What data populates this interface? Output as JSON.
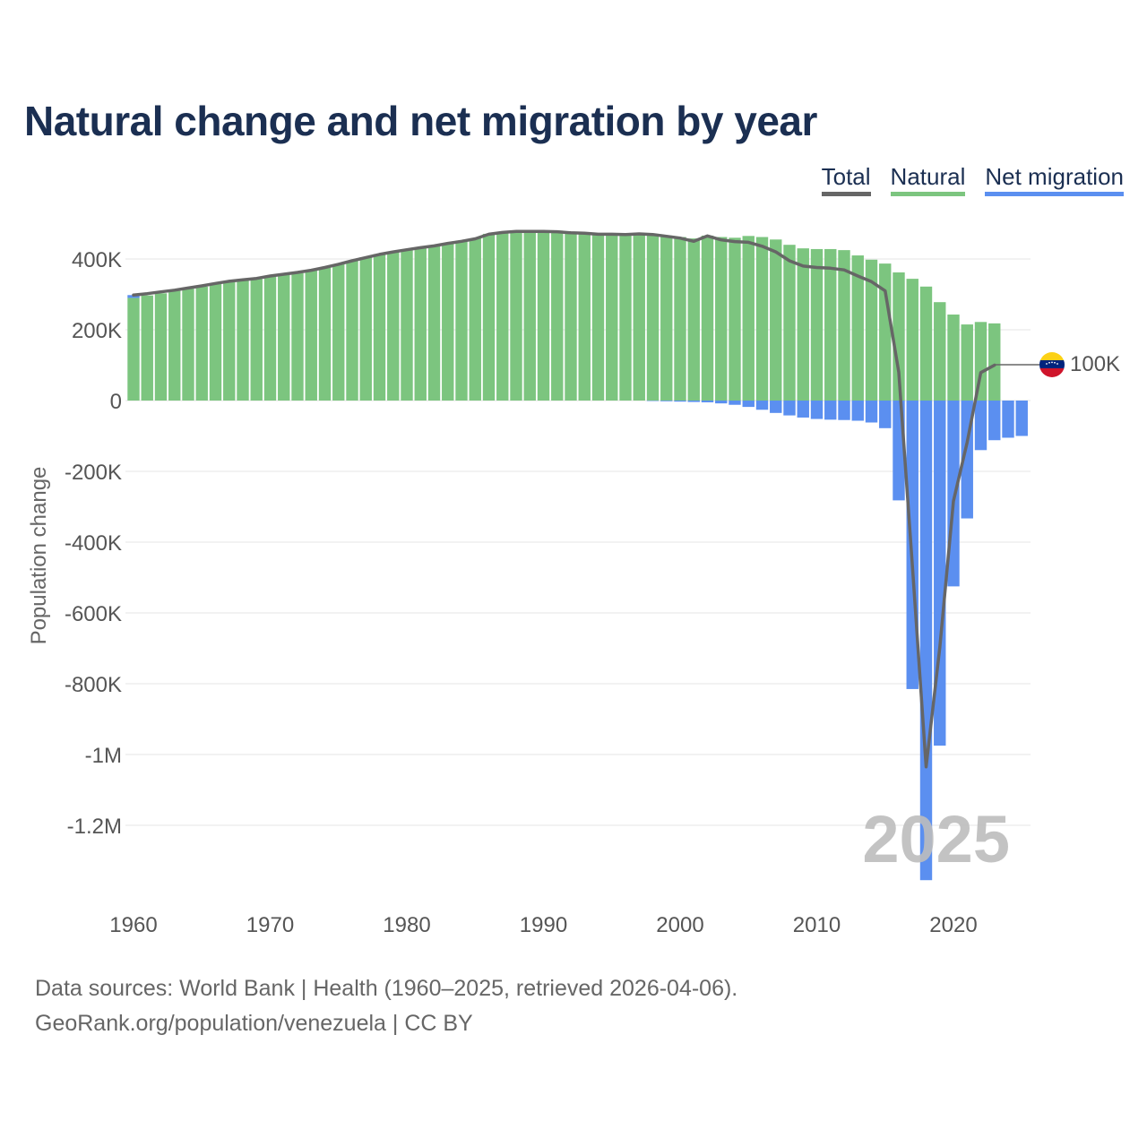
{
  "title": "Natural change and net migration by year",
  "legend": {
    "total": "Total",
    "natural": "Natural",
    "net_migration": "Net migration"
  },
  "colors": {
    "total": "#666666",
    "natural": "#7cc57f",
    "net_migration": "#5b8ff0",
    "title": "#1b2f52",
    "watermark": "#bdbdbd"
  },
  "footer": {
    "line1": "Data sources: World Bank | Health (1960–2025, retrieved 2026-04-06).",
    "line2": "GeoRank.org/population/venezuela | CC BY"
  },
  "chart_data": {
    "type": "bar",
    "title": "Natural change and net migration by year",
    "ylabel": "Population change",
    "xlabel": "",
    "ylim": [
      -1360000,
      500000
    ],
    "xlim": [
      1960,
      2025
    ],
    "yticks": [
      400000,
      200000,
      0,
      -200000,
      -400000,
      -600000,
      -800000,
      -1000000,
      -1200000
    ],
    "ytick_labels": [
      "400K",
      "200K",
      "0",
      "-200K",
      "-400K",
      "-600K",
      "-800K",
      "-1M",
      "-1.2M"
    ],
    "xticks": [
      1960,
      1970,
      1980,
      1990,
      2000,
      2010,
      2020
    ],
    "xtick_labels": [
      "1960",
      "1970",
      "1980",
      "1990",
      "2000",
      "2010",
      "2020"
    ],
    "watermark": "2025",
    "end_label": "100K",
    "end_marker": "venezuela-flag",
    "years": [
      1960,
      1961,
      1962,
      1963,
      1964,
      1965,
      1966,
      1967,
      1968,
      1969,
      1970,
      1971,
      1972,
      1973,
      1974,
      1975,
      1976,
      1977,
      1978,
      1979,
      1980,
      1981,
      1982,
      1983,
      1984,
      1985,
      1986,
      1987,
      1988,
      1989,
      1990,
      1991,
      1992,
      1993,
      1994,
      1995,
      1996,
      1997,
      1998,
      1999,
      2000,
      2001,
      2002,
      2003,
      2004,
      2005,
      2006,
      2007,
      2008,
      2009,
      2010,
      2011,
      2012,
      2013,
      2014,
      2015,
      2016,
      2017,
      2018,
      2019,
      2020,
      2021,
      2022,
      2023,
      2024,
      2025
    ],
    "series": [
      {
        "name": "Natural",
        "values": [
          290000,
          297000,
          303000,
          310000,
          316000,
          322000,
          329000,
          335000,
          340000,
          343000,
          350000,
          355000,
          360000,
          367000,
          375000,
          385000,
          395000,
          405000,
          414000,
          421000,
          427000,
          433000,
          438000,
          445000,
          451000,
          458000,
          471000,
          476000,
          480000,
          480000,
          480000,
          480000,
          477000,
          476000,
          473000,
          472000,
          471000,
          473000,
          470000,
          466000,
          462000,
          458000,
          466000,
          462000,
          460000,
          465000,
          462000,
          455000,
          440000,
          430000,
          428000,
          428000,
          425000,
          410000,
          398000,
          387000,
          362000,
          344000,
          322000,
          278000,
          243000,
          215000,
          222000,
          218000,
          null,
          null
        ]
      },
      {
        "name": "Net migration",
        "values": [
          8000,
          0,
          0,
          0,
          0,
          0,
          0,
          0,
          0,
          0,
          0,
          0,
          0,
          0,
          0,
          0,
          0,
          0,
          0,
          0,
          0,
          0,
          0,
          0,
          0,
          0,
          0,
          0,
          0,
          0,
          0,
          0,
          0,
          0,
          0,
          0,
          0,
          0,
          -1000,
          -2000,
          -3000,
          -4000,
          -5000,
          -8000,
          -12000,
          -18000,
          -26000,
          -35000,
          -42000,
          -48000,
          -52000,
          -54000,
          -55000,
          -57000,
          -62000,
          -78000,
          -282000,
          -815000,
          -1355000,
          -975000,
          -525000,
          -333000,
          -140000,
          -112000,
          -105000,
          -100000
        ]
      },
      {
        "name": "Total",
        "values": [
          298000,
          302000,
          307000,
          312000,
          318000,
          324000,
          331000,
          337000,
          341000,
          345000,
          352000,
          357000,
          362000,
          368000,
          376000,
          385000,
          395000,
          404000,
          413000,
          420000,
          426000,
          432000,
          437000,
          444000,
          450000,
          457000,
          470000,
          475000,
          478000,
          478000,
          478000,
          477000,
          474000,
          473000,
          470000,
          470000,
          469000,
          471000,
          469000,
          464000,
          459000,
          450000,
          465000,
          454000,
          449000,
          447000,
          436000,
          420000,
          395000,
          380000,
          376000,
          374000,
          369000,
          352000,
          336000,
          310000,
          80000,
          -471000,
          -1035000,
          -697000,
          -284000,
          -118000,
          79000,
          100000,
          null,
          null
        ]
      }
    ]
  }
}
